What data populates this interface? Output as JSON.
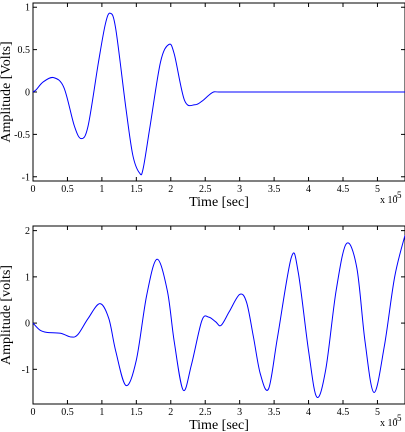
{
  "chart_data": [
    {
      "type": "line",
      "xlabel": "Time [sec]",
      "ylabel": "Amplitude [Volts]",
      "xlim": [
        0,
        5.4
      ],
      "ylim": [
        -1.05,
        1.05
      ],
      "x_scale_note": "x 10",
      "x_scale_exponent": "-5",
      "xticks": [
        "0",
        "0.5",
        "1",
        "1.5",
        "2",
        "2.5",
        "3",
        "3.5",
        "4",
        "4.5",
        "5"
      ],
      "yticks": [
        "-1",
        "-0.5",
        "0",
        "0.5",
        "1"
      ],
      "grid": false,
      "line_color": "#0000ff",
      "series": [
        {
          "x": [
            0,
            0.05,
            0.15,
            0.3,
            0.45,
            0.6,
            0.7,
            0.8,
            0.95,
            1.05,
            1.12,
            1.2,
            1.35,
            1.45,
            1.55,
            1.6,
            1.7,
            1.85,
            1.97,
            2.05,
            2.2,
            2.35,
            2.45,
            2.55,
            2.62,
            2.7,
            3.0,
            3.5,
            4.0,
            4.5,
            5.0,
            5.4
          ],
          "y": [
            0,
            0.03,
            0.12,
            0.17,
            0.05,
            -0.4,
            -0.55,
            -0.4,
            0.35,
            0.8,
            0.93,
            0.75,
            -0.2,
            -0.75,
            -0.96,
            -0.9,
            -0.4,
            0.35,
            0.56,
            0.45,
            -0.1,
            -0.15,
            -0.11,
            -0.04,
            0,
            0,
            0,
            0,
            0,
            0,
            0,
            0
          ]
        }
      ]
    },
    {
      "type": "line",
      "xlabel": "Time [sec]",
      "ylabel": "Amplitude [volts]",
      "xlim": [
        0,
        5.4
      ],
      "ylim": [
        -1.75,
        2.1
      ],
      "x_scale_note": "x 10",
      "x_scale_exponent": "-5",
      "xticks": [
        "0",
        "0.5",
        "1",
        "1.5",
        "2",
        "2.5",
        "3",
        "3.5",
        "4",
        "4.5",
        "5"
      ],
      "yticks": [
        "-1",
        "0",
        "1",
        "2"
      ],
      "grid": false,
      "line_color": "#0000ff",
      "series": [
        {
          "x": [
            0,
            0.1,
            0.2,
            0.4,
            0.55,
            0.65,
            0.8,
            0.97,
            1.1,
            1.2,
            1.35,
            1.5,
            1.65,
            1.8,
            1.95,
            2.05,
            2.18,
            2.3,
            2.45,
            2.55,
            2.65,
            2.73,
            2.85,
            3.0,
            3.1,
            3.2,
            3.3,
            3.42,
            3.55,
            3.75,
            3.85,
            4.0,
            4.12,
            4.25,
            4.4,
            4.55,
            4.7,
            4.82,
            4.95,
            5.1,
            5.25,
            5.4
          ],
          "y": [
            0,
            -0.15,
            -0.2,
            -0.22,
            -0.3,
            -0.25,
            0.1,
            0.42,
            0.1,
            -0.6,
            -1.35,
            -0.8,
            0.6,
            1.38,
            0.7,
            -0.4,
            -1.45,
            -0.9,
            0.05,
            0.13,
            0.03,
            -0.05,
            0.25,
            0.62,
            0.45,
            -0.3,
            -1.1,
            -1.42,
            -0.3,
            1.42,
            1.1,
            -0.6,
            -1.6,
            -1.0,
            0.7,
            1.72,
            1.2,
            -0.4,
            -1.5,
            -0.5,
            1.0,
            1.9
          ]
        }
      ]
    }
  ]
}
